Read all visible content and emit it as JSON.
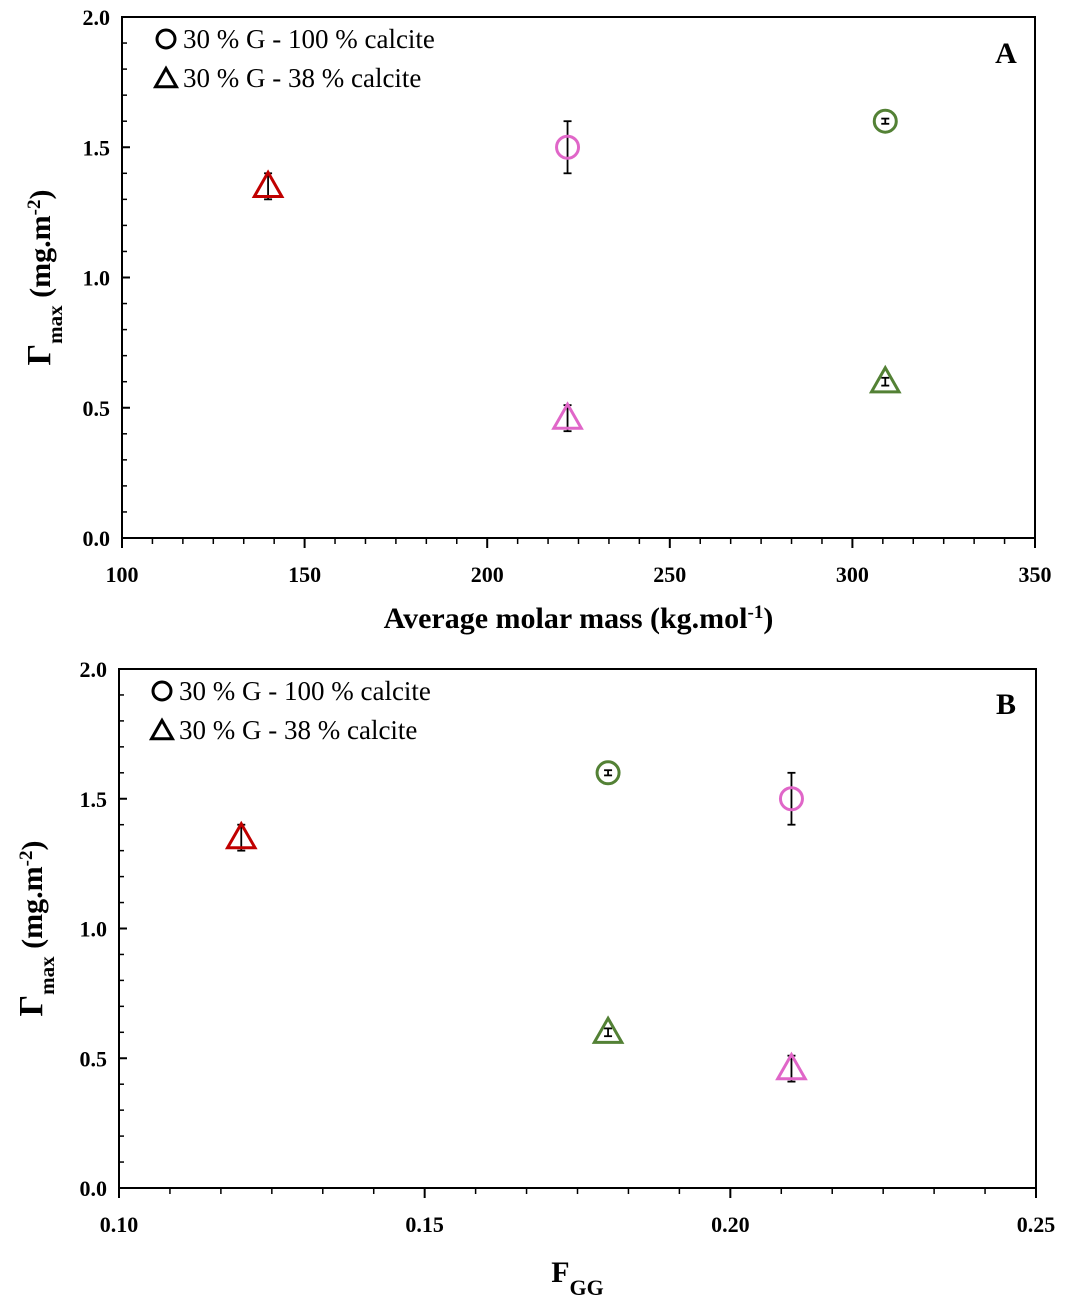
{
  "colors": {
    "red": "#C00000",
    "magenta": "#E066C8",
    "green": "#538135",
    "axis": "#000000",
    "errorbar": "#000000"
  },
  "chart_data": [
    {
      "type": "scatter",
      "panel_label": "A",
      "xlabel": "Average molar mass (kg.mol",
      "xlabel_sup": "-1",
      "xlabel_tail": ")",
      "ylabel": "Γ",
      "ylabel_sub": "max",
      "ylabel_unit": " (mg.m",
      "ylabel_sup": "-2",
      "ylabel_tail": ")",
      "xlim": [
        100,
        350
      ],
      "ylim": [
        0,
        2
      ],
      "xticks": [
        "100",
        "150",
        "200",
        "250",
        "300",
        "350"
      ],
      "yticks": [
        "0.0",
        "0.5",
        "1.0",
        "1.5",
        "2.0"
      ],
      "grid": false,
      "legend_position": "top-left",
      "legend": [
        {
          "marker": "circle",
          "label": "30 % G - 100 % calcite"
        },
        {
          "marker": "triangle",
          "label": "30 % G - 38 % calcite"
        }
      ],
      "series": [
        {
          "marker": "circle",
          "points": [
            {
              "x": 222,
              "y": 1.5,
              "err": 0.1,
              "color": "#E066C8"
            },
            {
              "x": 309,
              "y": 1.6,
              "err": 0.01,
              "color": "#538135"
            }
          ]
        },
        {
          "marker": "triangle",
          "points": [
            {
              "x": 140,
              "y": 1.35,
              "err": 0.05,
              "color": "#C00000"
            },
            {
              "x": 222,
              "y": 0.46,
              "err": 0.05,
              "color": "#E066C8"
            },
            {
              "x": 309,
              "y": 0.6,
              "err": 0.015,
              "color": "#538135"
            }
          ]
        }
      ]
    },
    {
      "type": "scatter",
      "panel_label": "B",
      "xlabel": "F",
      "xlabel_sub": "GG",
      "ylabel": "Γ",
      "ylabel_sub": "max",
      "ylabel_unit": " (mg.m",
      "ylabel_sup": "-2",
      "ylabel_tail": ")",
      "xlim": [
        0.1,
        0.25
      ],
      "ylim": [
        0,
        2
      ],
      "xticks": [
        "0.10",
        "0.15",
        "0.20",
        "0.25"
      ],
      "yticks": [
        "0.0",
        "0.5",
        "1.0",
        "1.5",
        "2.0"
      ],
      "grid": false,
      "legend_position": "top-left",
      "legend": [
        {
          "marker": "circle",
          "label": "30 % G - 100 % calcite"
        },
        {
          "marker": "triangle",
          "label": "30 % G - 38 % calcite"
        }
      ],
      "series": [
        {
          "marker": "circle",
          "points": [
            {
              "x": 0.18,
              "y": 1.6,
              "err": 0.01,
              "color": "#538135"
            },
            {
              "x": 0.21,
              "y": 1.5,
              "err": 0.1,
              "color": "#E066C8"
            }
          ]
        },
        {
          "marker": "triangle",
          "points": [
            {
              "x": 0.12,
              "y": 1.35,
              "err": 0.05,
              "color": "#C00000"
            },
            {
              "x": 0.18,
              "y": 0.6,
              "err": 0.015,
              "color": "#538135"
            },
            {
              "x": 0.21,
              "y": 0.46,
              "err": 0.05,
              "color": "#E066C8"
            }
          ]
        }
      ]
    }
  ]
}
